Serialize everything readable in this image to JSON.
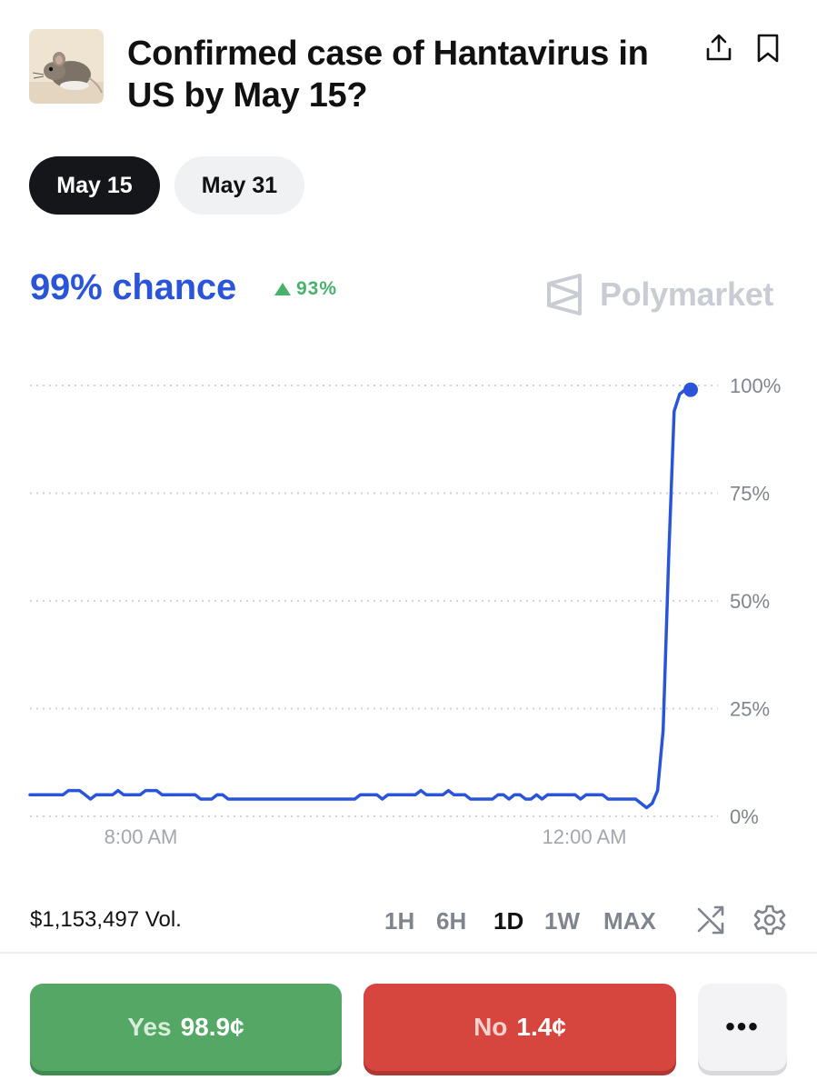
{
  "header": {
    "title": "Confirmed case of Hantavirus in US by May 15?",
    "thumbnail_icon": "mouse-photo-icon",
    "share_icon": "share-icon",
    "bookmark_icon": "bookmark-icon"
  },
  "date_tabs": [
    {
      "label": "May 15",
      "active": true
    },
    {
      "label": "May 31",
      "active": false
    }
  ],
  "market": {
    "chance_text": "99% chance",
    "change_text": "93%",
    "change_direction": "up",
    "brand": "Polymarket"
  },
  "colors": {
    "accent": "#2b55d9",
    "positive": "#48b16e",
    "yes": "#55a765",
    "no": "#d7453f"
  },
  "chart_data": {
    "type": "line",
    "y_ticks": [
      "100%",
      "75%",
      "50%",
      "25%",
      "0%"
    ],
    "x_ticks": [
      "8:00 AM",
      "12:00 AM"
    ],
    "ylim": [
      0,
      100
    ],
    "grid": true,
    "series": [
      {
        "values": [
          5,
          5,
          5,
          5,
          5,
          5,
          5,
          6,
          6,
          6,
          5,
          4,
          5,
          5,
          5,
          5,
          6,
          5,
          5,
          5,
          5,
          6,
          6,
          6,
          5,
          5,
          5,
          5,
          5,
          5,
          5,
          4,
          4,
          4,
          5,
          5,
          4,
          4,
          4,
          4,
          4,
          4,
          4,
          4,
          4,
          4,
          4,
          4,
          4,
          4,
          4,
          4,
          4,
          4,
          4,
          4,
          4,
          4,
          4,
          4,
          5,
          5,
          5,
          5,
          4,
          5,
          5,
          5,
          5,
          5,
          5,
          6,
          5,
          5,
          5,
          5,
          6,
          5,
          5,
          5,
          4,
          4,
          4,
          4,
          4,
          5,
          5,
          4,
          5,
          5,
          4,
          4,
          5,
          4,
          5,
          5,
          5,
          5,
          5,
          5,
          4,
          5,
          5,
          5,
          5,
          4,
          4,
          4,
          4,
          4,
          4,
          3,
          2,
          3,
          6,
          20,
          60,
          94,
          98,
          99,
          99
        ]
      }
    ]
  },
  "footer": {
    "volume": "$1,153,497 Vol.",
    "ranges": [
      {
        "label": "1H",
        "selected": false
      },
      {
        "label": "6H",
        "selected": false
      },
      {
        "label": "1D",
        "selected": true
      },
      {
        "label": "1W",
        "selected": false
      },
      {
        "label": "MAX",
        "selected": false
      }
    ],
    "shuffle_icon": "shuffle-icon",
    "settings_icon": "gear-icon"
  },
  "actions": {
    "yes_label": "Yes",
    "yes_price": "98.9¢",
    "no_label": "No",
    "no_price": "1.4¢",
    "more_label": "•••"
  }
}
